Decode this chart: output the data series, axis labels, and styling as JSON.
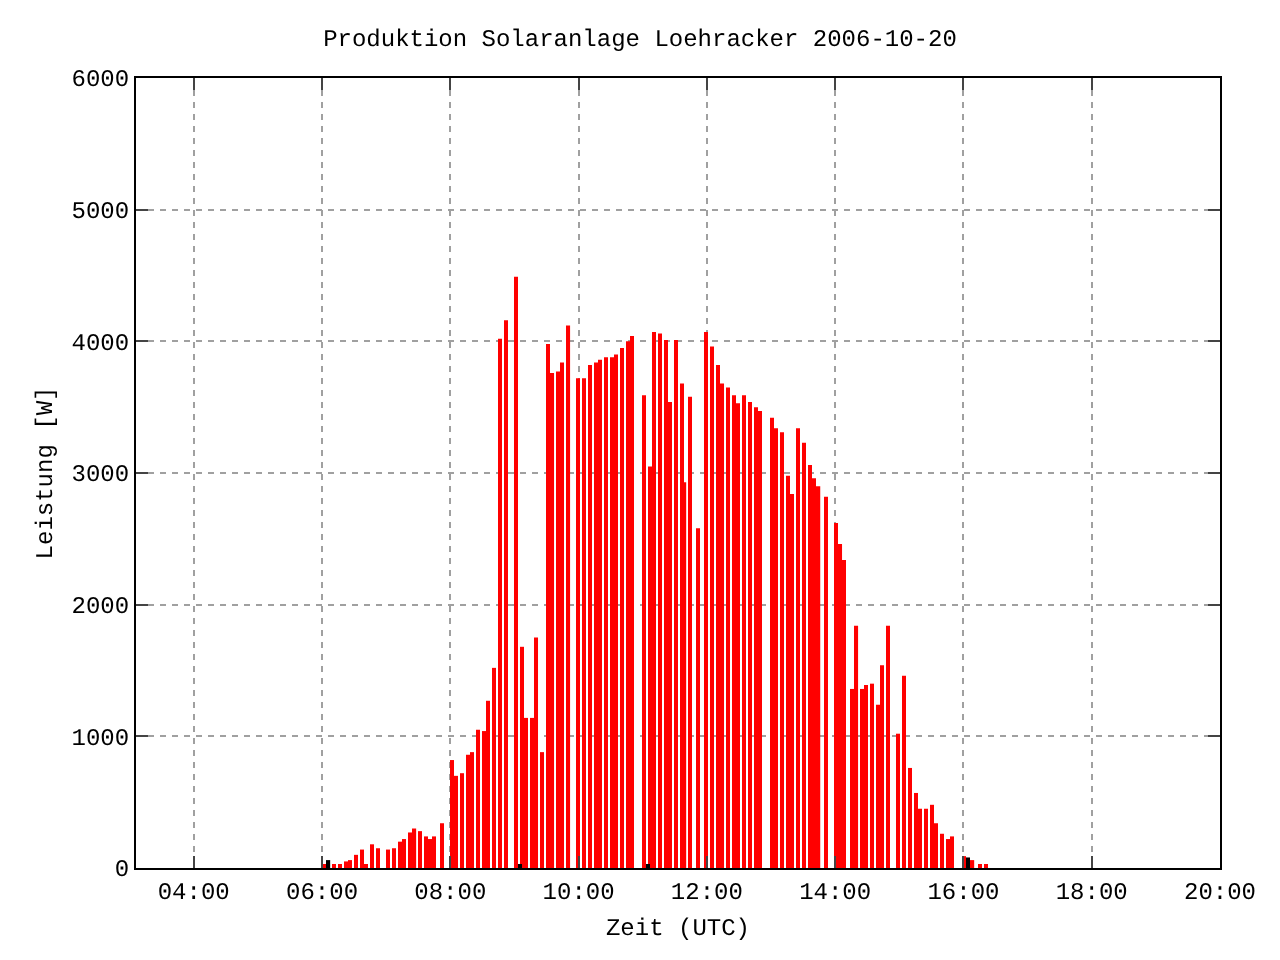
{
  "chart_data": {
    "type": "bar",
    "title": "Produktion Solaranlage Loehracker 2006-10-20",
    "xlabel": "Zeit (UTC)",
    "ylabel": "Leistung [W]",
    "xlim": [
      3.1,
      20
    ],
    "ylim": [
      0,
      6000
    ],
    "xticks": [
      {
        "value": 4,
        "label": "04:00"
      },
      {
        "value": 6,
        "label": "06:00"
      },
      {
        "value": 8,
        "label": "08:00"
      },
      {
        "value": 10,
        "label": "10:00"
      },
      {
        "value": 12,
        "label": "12:00"
      },
      {
        "value": 14,
        "label": "14:00"
      },
      {
        "value": 16,
        "label": "16:00"
      },
      {
        "value": 18,
        "label": "18:00"
      },
      {
        "value": 20,
        "label": "20:00"
      }
    ],
    "yticks": [
      0,
      1000,
      2000,
      3000,
      4000,
      5000,
      6000
    ],
    "grid": true,
    "series": [
      {
        "color": "#ff0000",
        "x": [
          6.04,
          6.19,
          6.29,
          6.38,
          6.44,
          6.53,
          6.62,
          6.69,
          6.78,
          6.87,
          7.02,
          7.12,
          7.21,
          7.27,
          7.36,
          7.45,
          7.52,
          7.61,
          7.7,
          7.76,
          7.86,
          8.04,
          8.1,
          8.19,
          8.29,
          8.35,
          8.44,
          8.53,
          8.59,
          8.69,
          8.78,
          8.87,
          9.02,
          9.11,
          9.17,
          9.26,
          9.35,
          9.42,
          9.51,
          9.6,
          9.69,
          9.75,
          9.85,
          10.0,
          10.09,
          10.18,
          10.28,
          10.34,
          10.43,
          10.52,
          10.58,
          10.68,
          10.77,
          10.83,
          11.02,
          11.11,
          11.17,
          11.26,
          11.35,
          11.42,
          11.51,
          11.6,
          11.66,
          11.75,
          11.85,
          12.0,
          12.09,
          12.18,
          12.25,
          12.34,
          12.43,
          12.49,
          12.58,
          12.68,
          12.77,
          12.83,
          13.02,
          13.08,
          13.17,
          13.26,
          13.32,
          13.42,
          13.51,
          13.6,
          13.66,
          13.75,
          13.85,
          14.0,
          14.09,
          14.15,
          14.25,
          14.34,
          14.43,
          14.49,
          14.58,
          14.68,
          14.74,
          14.83,
          14.98,
          15.08,
          15.17,
          15.26,
          15.32,
          15.42,
          15.51,
          15.57,
          15.66,
          15.75,
          15.82,
          16.0,
          16.15,
          16.25,
          16.34
        ],
        "values": [
          20,
          20,
          30,
          50,
          60,
          100,
          140,
          30,
          180,
          150,
          140,
          150,
          200,
          220,
          270,
          300,
          280,
          240,
          220,
          240,
          340,
          820,
          700,
          720,
          860,
          880,
          1050,
          1040,
          1270,
          1520,
          4020,
          4160,
          4490,
          1680,
          1140,
          1140,
          1750,
          880,
          3980,
          3760,
          3770,
          3840,
          4120,
          3720,
          3720,
          3820,
          3840,
          3860,
          3880,
          3880,
          3900,
          3950,
          4000,
          4040,
          3590,
          3050,
          4070,
          4060,
          4010,
          3540,
          4010,
          3680,
          2930,
          3580,
          2580,
          4070,
          3960,
          3820,
          3680,
          3650,
          3590,
          3530,
          3590,
          3540,
          3500,
          3470,
          3420,
          3340,
          3310,
          2980,
          2840,
          3340,
          3230,
          3060,
          2960,
          2900,
          2820,
          2620,
          2460,
          2340,
          1360,
          1840,
          1360,
          1390,
          1400,
          1240,
          1540,
          1840,
          1020,
          1460,
          760,
          570,
          450,
          450,
          480,
          340,
          260,
          220,
          240,
          90,
          60,
          30,
          20
        ]
      },
      {
        "color": "#000000",
        "x": [
          6.11,
          9.08,
          11.08,
          16.06
        ],
        "values": [
          60,
          30,
          30,
          80
        ]
      }
    ]
  }
}
